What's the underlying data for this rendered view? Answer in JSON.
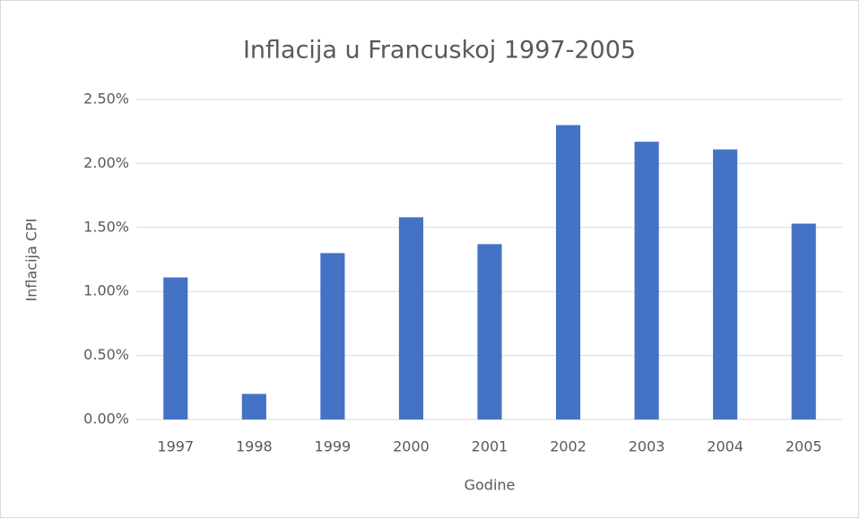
{
  "chart_data": {
    "type": "bar",
    "title": "Inflacija u Francuskoj 1997-2005",
    "x_label": "Godine",
    "y_label": "Inflacija CPI",
    "categories": [
      "1997",
      "1998",
      "1999",
      "2000",
      "2001",
      "2002",
      "2003",
      "2004",
      "2005"
    ],
    "values": [
      1.11,
      0.2,
      1.3,
      1.58,
      1.37,
      2.3,
      2.17,
      2.11,
      1.53
    ],
    "color": "#4472c4",
    "ylim": [
      0,
      2.5
    ],
    "yticks": [
      {
        "value": 0,
        "label": "0.00%"
      },
      {
        "value": 0.5,
        "label": "0.50%"
      },
      {
        "value": 1,
        "label": "1.00%"
      },
      {
        "value": 1.5,
        "label": "1.50%"
      },
      {
        "value": 2,
        "label": "2.00%"
      },
      {
        "value": 2.5,
        "label": "2.50%"
      }
    ],
    "grid": true
  }
}
